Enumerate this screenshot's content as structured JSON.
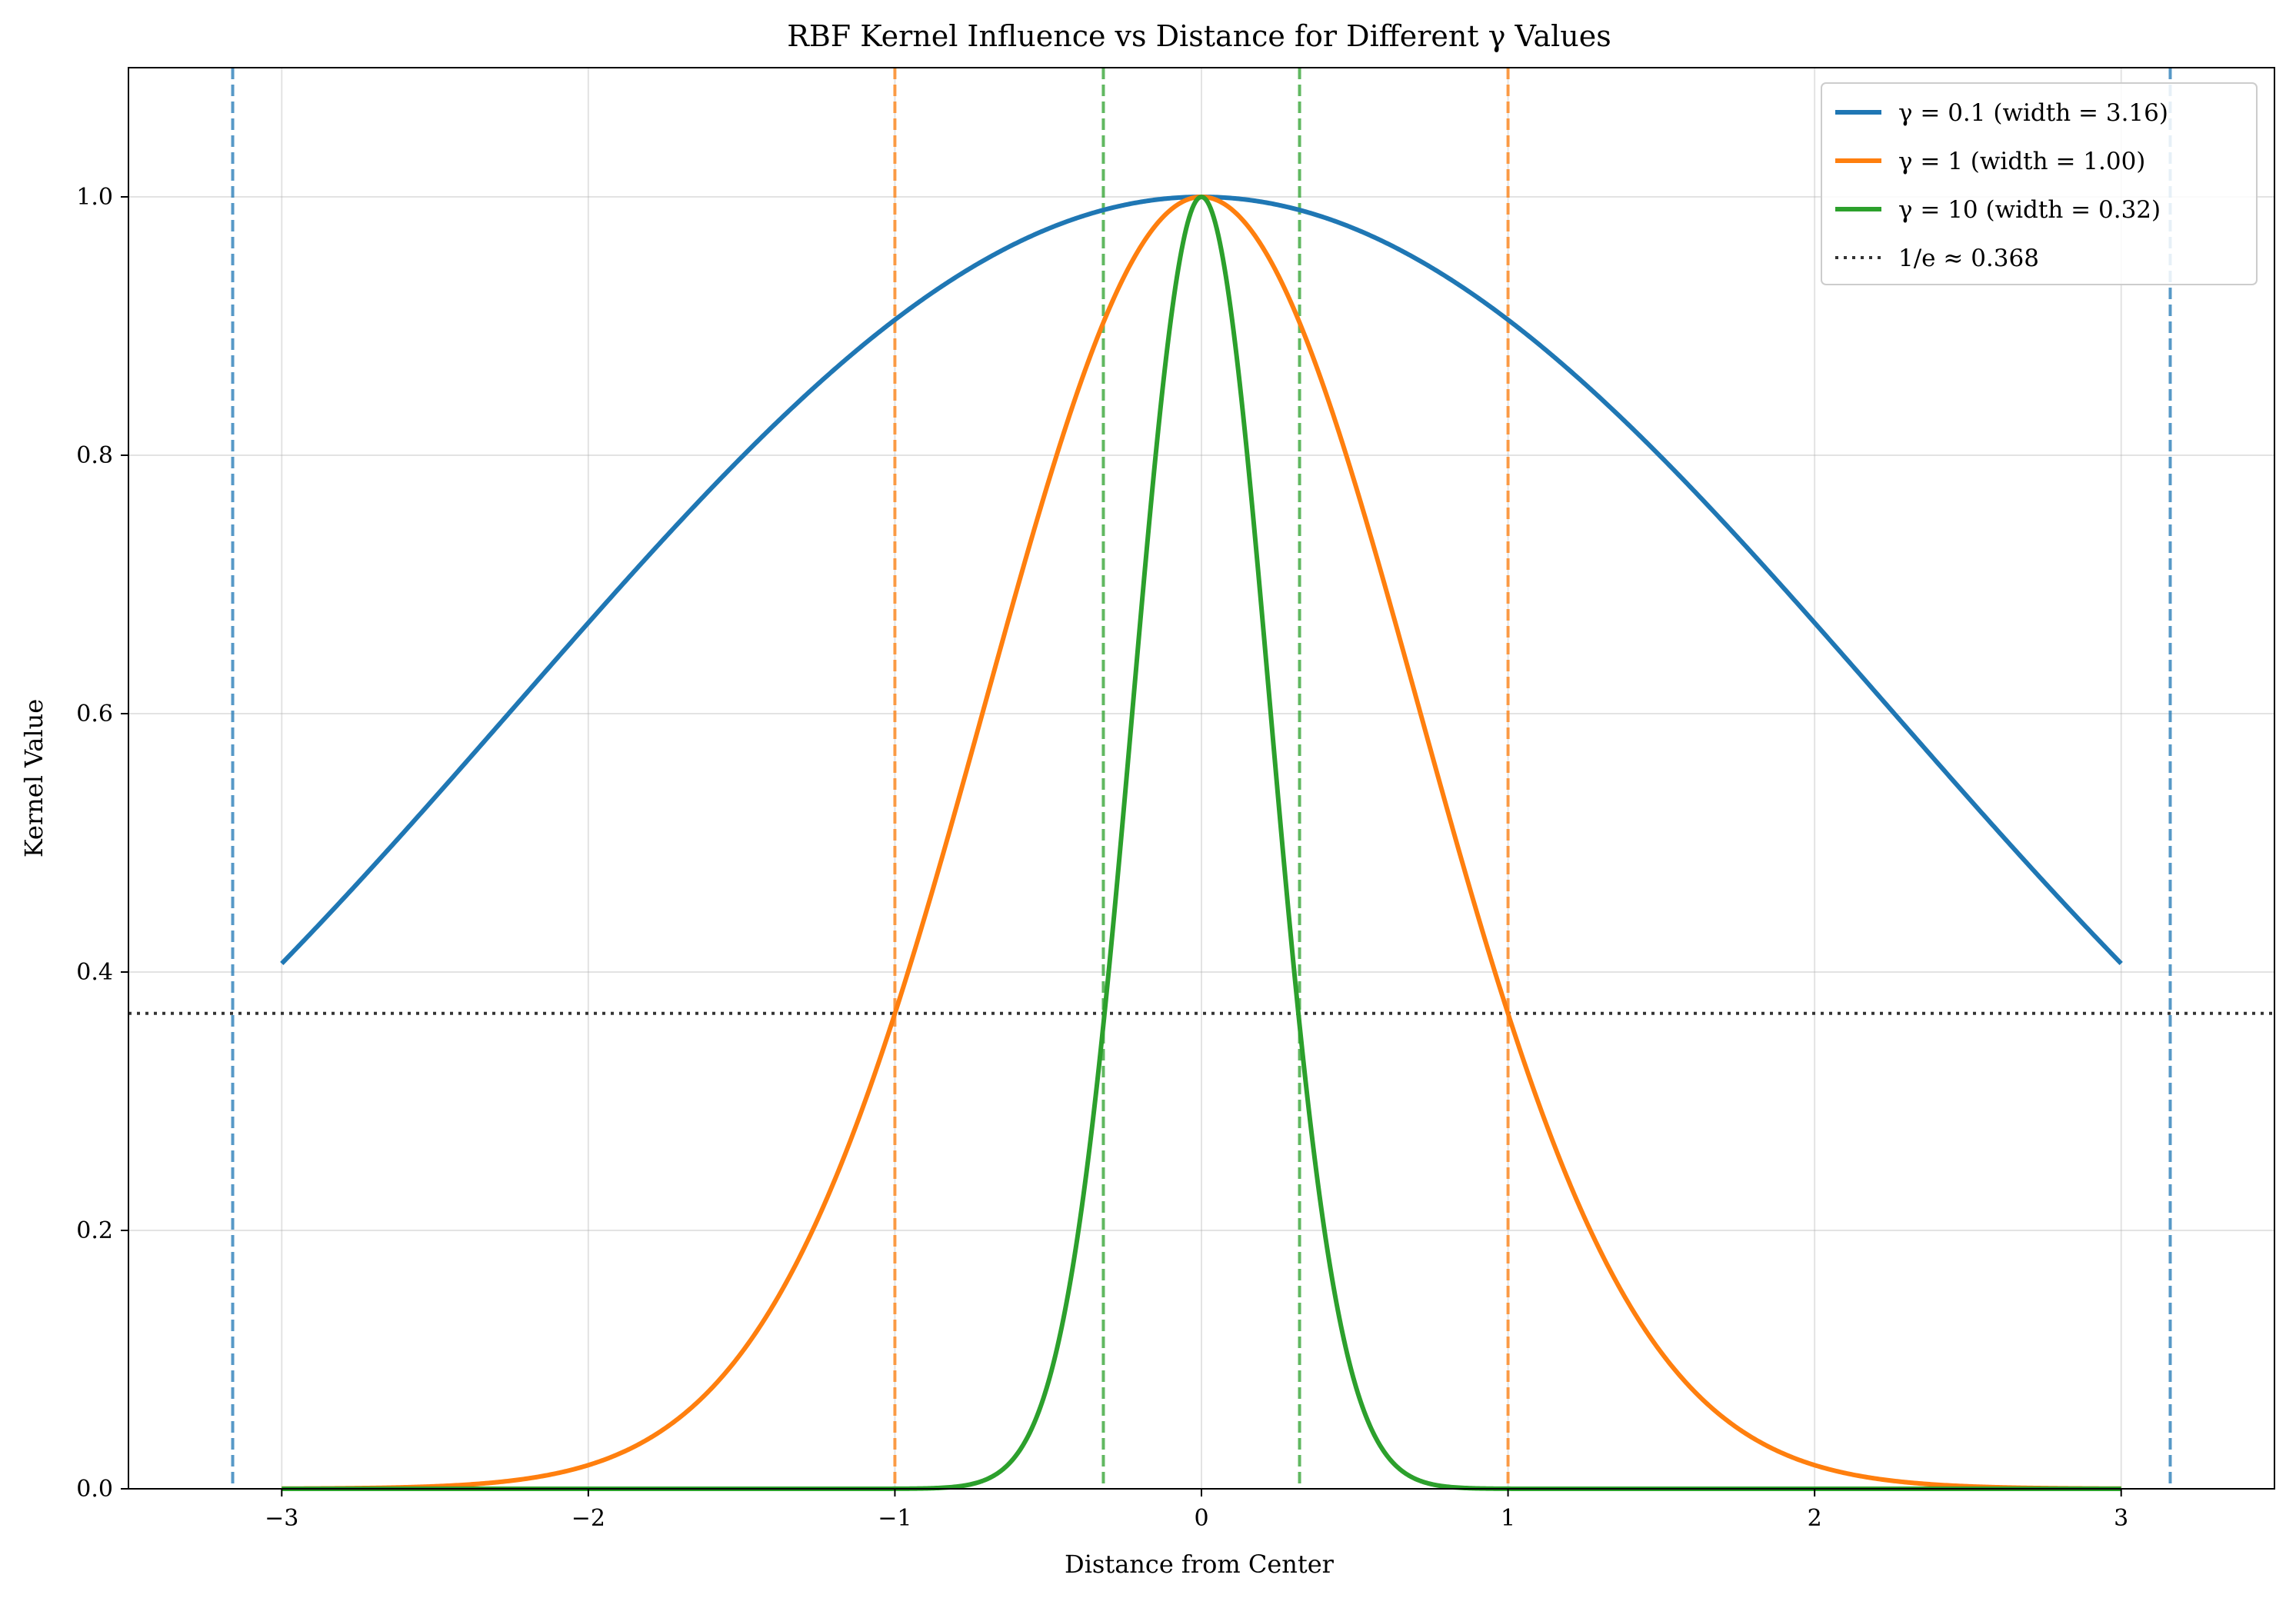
{
  "chart_data": {
    "type": "line",
    "title": "RBF Kernel Influence vs Distance for Different γ Values",
    "xlabel": "Distance from Center",
    "ylabel": "Kernel Value",
    "xlim": [
      -3.5,
      3.5
    ],
    "ylim": [
      0.0,
      1.1
    ],
    "x_ticks": [
      -3,
      -2,
      -1,
      0,
      1,
      2,
      3
    ],
    "x_tick_labels": [
      "−3",
      "−2",
      "−1",
      "0",
      "1",
      "2",
      "3"
    ],
    "y_ticks": [
      0.0,
      0.2,
      0.4,
      0.6,
      0.8,
      1.0
    ],
    "y_tick_labels": [
      "0.0",
      "0.2",
      "0.4",
      "0.6",
      "0.8",
      "1.0"
    ],
    "grid": true,
    "legend_position": "top-right",
    "x_range": [
      -3,
      3
    ],
    "series": [
      {
        "name": "γ = 0.1 (width = 3.16)",
        "gamma": 0.1,
        "width": 3.16,
        "color": "#1f77b4"
      },
      {
        "name": "γ = 1 (width = 1.00)",
        "gamma": 1,
        "width": 1.0,
        "color": "#ff7f0e"
      },
      {
        "name": "γ = 10 (width = 0.32)",
        "gamma": 10,
        "width": 0.32,
        "color": "#2ca02c"
      }
    ],
    "reference_line": {
      "name": "1/e ≈ 0.368",
      "y": 0.368,
      "color": "#333333"
    },
    "vertical_markers": [
      {
        "x": -3.16,
        "color": "#1f77b4"
      },
      {
        "x": 3.16,
        "color": "#1f77b4"
      },
      {
        "x": -1.0,
        "color": "#ff7f0e"
      },
      {
        "x": 1.0,
        "color": "#ff7f0e"
      },
      {
        "x": -0.32,
        "color": "#2ca02c"
      },
      {
        "x": 0.32,
        "color": "#2ca02c"
      }
    ]
  }
}
